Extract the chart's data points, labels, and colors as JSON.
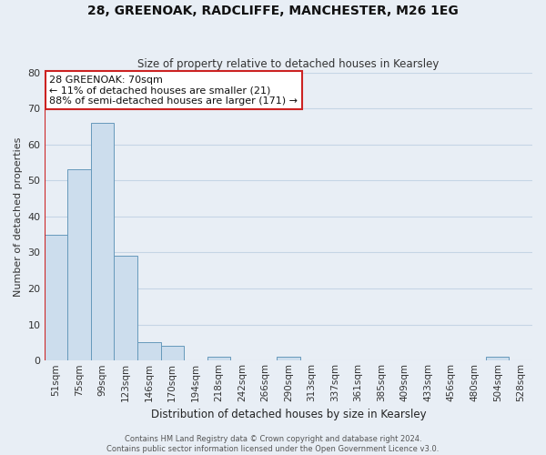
{
  "title": "28, GREENOAK, RADCLIFFE, MANCHESTER, M26 1EG",
  "subtitle": "Size of property relative to detached houses in Kearsley",
  "xlabel": "Distribution of detached houses by size in Kearsley",
  "ylabel": "Number of detached properties",
  "footer_lines": [
    "Contains HM Land Registry data © Crown copyright and database right 2024.",
    "Contains public sector information licensed under the Open Government Licence v3.0."
  ],
  "bin_labels": [
    "51sqm",
    "75sqm",
    "99sqm",
    "123sqm",
    "146sqm",
    "170sqm",
    "194sqm",
    "218sqm",
    "242sqm",
    "266sqm",
    "290sqm",
    "313sqm",
    "337sqm",
    "361sqm",
    "385sqm",
    "409sqm",
    "433sqm",
    "456sqm",
    "480sqm",
    "504sqm",
    "528sqm"
  ],
  "bar_values": [
    35,
    53,
    66,
    29,
    5,
    4,
    0,
    1,
    0,
    0,
    1,
    0,
    0,
    0,
    0,
    0,
    0,
    0,
    0,
    1,
    0
  ],
  "bar_color": "#ccdded",
  "bar_edge_color": "#6699bb",
  "annotation_title": "28 GREENOAK: 70sqm",
  "annotation_line1": "← 11% of detached houses are smaller (21)",
  "annotation_line2": "88% of semi-detached houses are larger (171) →",
  "annotation_box_color": "#ffffff",
  "annotation_border_color": "#cc2222",
  "red_line_color": "#cc2222",
  "red_line_bin": 0,
  "ylim": [
    0,
    80
  ],
  "yticks": [
    0,
    10,
    20,
    30,
    40,
    50,
    60,
    70,
    80
  ],
  "grid_color": "#c5d5e5",
  "bg_color": "#e8eef5",
  "title_fontsize": 10,
  "subtitle_fontsize": 8.5,
  "xlabel_fontsize": 8.5,
  "ylabel_fontsize": 8,
  "tick_fontsize": 7.5,
  "footer_fontsize": 6,
  "annotation_fontsize": 8
}
